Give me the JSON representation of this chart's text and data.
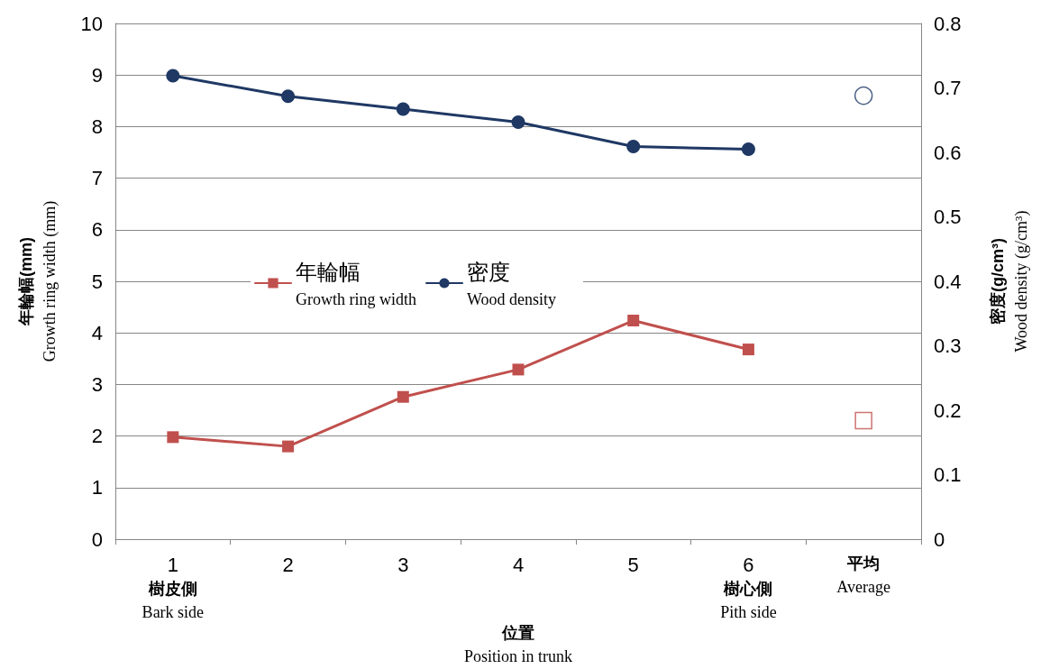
{
  "chart_data": {
    "type": "line",
    "categories": [
      "1\n樹皮側\nBark side",
      "2",
      "3",
      "4",
      "5",
      "6\n樹心側\nPith side",
      "平均\nAverage"
    ],
    "xlabel": "位置\nPosition in trunk",
    "ylabel": "年輪幅(mm)\nGrowth ring width (mm)",
    "y2label": "密度(g/cm³)\nWood density (g/cm³)",
    "series": [
      {
        "name": "年輪幅\nGrowth ring width",
        "color": "#c0504d",
        "marker": "square",
        "values": [
          1.98,
          1.8,
          2.76,
          3.29,
          4.24,
          3.68,
          null
        ]
      },
      {
        "name": "密度\nWood density",
        "color": "#1f3864",
        "marker": "circle",
        "axis": "y2",
        "values": [
          0.719,
          0.687,
          0.667,
          0.647,
          0.609,
          0.605,
          null
        ]
      },
      {
        "type": "scatter",
        "color": "#c0504d",
        "marker": "square",
        "x": [
          "平均\nAverage"
        ],
        "values": [
          2.3
        ]
      },
      {
        "type": "scatter",
        "color": "#1f3864",
        "marker": "circle",
        "axis": "y2",
        "x": [
          "平均\nAverage"
        ],
        "values": [
          0.688
        ]
      }
    ],
    "ylim": [
      0,
      10
    ],
    "yticks": [
      0,
      1,
      2,
      3,
      4,
      5,
      6,
      7,
      8,
      9,
      10
    ],
    "y2lim": [
      0,
      0.8
    ],
    "y2ticks": [
      0,
      0.1,
      0.2,
      0.3,
      0.4,
      0.5,
      0.6,
      0.7,
      0.8
    ],
    "grid": "y",
    "legend": "center",
    "line_style": "solid"
  }
}
